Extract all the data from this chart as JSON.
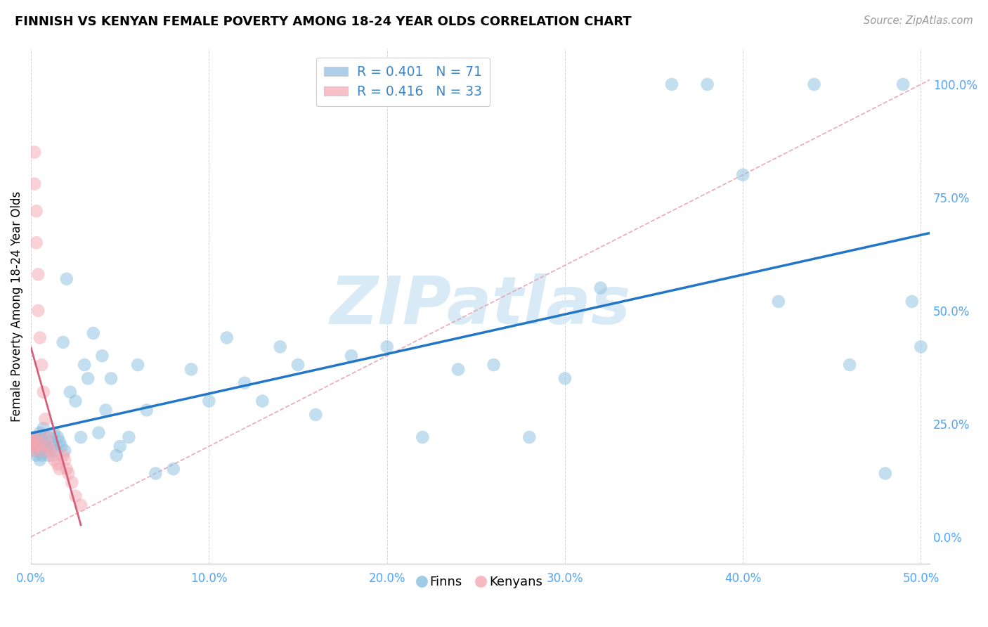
{
  "title": "FINNISH VS KENYAN FEMALE POVERTY AMONG 18-24 YEAR OLDS CORRELATION CHART",
  "source": "Source: ZipAtlas.com",
  "ylabel": "Female Poverty Among 18-24 Year Olds",
  "xlim": [
    0.0,
    0.505
  ],
  "ylim": [
    -0.06,
    1.08
  ],
  "xticks": [
    0.0,
    0.1,
    0.2,
    0.3,
    0.4,
    0.5
  ],
  "yticks_right": [
    0.0,
    0.25,
    0.5,
    0.75,
    1.0
  ],
  "ytick_labels_right": [
    "0.0%",
    "25.0%",
    "50.0%",
    "75.0%",
    "100.0%"
  ],
  "xtick_labels": [
    "0.0%",
    "10.0%",
    "20.0%",
    "30.0%",
    "40.0%",
    "50.0%"
  ],
  "legend_finns_label": "R = 0.401   N = 71",
  "legend_kenyans_label": "R = 0.416   N = 33",
  "legend_finns_color": "#aecde8",
  "legend_kenyans_color": "#f9c0c8",
  "finn_color": "#89bfdf",
  "kenyan_color": "#f4a7b2",
  "finn_line_color": "#2176c7",
  "kenyan_line_color": "#d45f7a",
  "reference_line_color": "#e8a0b0",
  "grid_color": "#d0d0d0",
  "axis_color": "#4da6ff",
  "text_color": "#3a86c8",
  "watermark_color": "#d8eaf5",
  "finns_x": [
    0.001,
    0.002,
    0.002,
    0.003,
    0.003,
    0.004,
    0.004,
    0.005,
    0.005,
    0.005,
    0.006,
    0.006,
    0.007,
    0.007,
    0.008,
    0.009,
    0.01,
    0.01,
    0.011,
    0.012,
    0.013,
    0.014,
    0.015,
    0.016,
    0.017,
    0.018,
    0.019,
    0.02,
    0.022,
    0.025,
    0.028,
    0.03,
    0.032,
    0.035,
    0.038,
    0.04,
    0.042,
    0.045,
    0.048,
    0.05,
    0.055,
    0.06,
    0.065,
    0.07,
    0.08,
    0.09,
    0.1,
    0.11,
    0.12,
    0.13,
    0.14,
    0.15,
    0.16,
    0.18,
    0.2,
    0.22,
    0.24,
    0.26,
    0.28,
    0.3,
    0.32,
    0.36,
    0.38,
    0.4,
    0.42,
    0.44,
    0.46,
    0.48,
    0.49,
    0.495,
    0.5
  ],
  "finns_y": [
    0.2,
    0.22,
    0.19,
    0.22,
    0.18,
    0.21,
    0.2,
    0.23,
    0.19,
    0.17,
    0.22,
    0.18,
    0.21,
    0.24,
    0.2,
    0.19,
    0.22,
    0.18,
    0.21,
    0.2,
    0.23,
    0.19,
    0.22,
    0.21,
    0.2,
    0.43,
    0.19,
    0.57,
    0.32,
    0.3,
    0.22,
    0.38,
    0.35,
    0.45,
    0.23,
    0.4,
    0.28,
    0.35,
    0.18,
    0.2,
    0.22,
    0.38,
    0.28,
    0.14,
    0.15,
    0.37,
    0.3,
    0.44,
    0.34,
    0.3,
    0.42,
    0.38,
    0.27,
    0.4,
    0.42,
    0.22,
    0.37,
    0.38,
    0.22,
    0.35,
    0.55,
    1.0,
    1.0,
    0.8,
    0.52,
    1.0,
    0.38,
    0.14,
    1.0,
    0.52,
    0.42
  ],
  "kenyans_x": [
    0.0,
    0.0,
    0.001,
    0.001,
    0.002,
    0.002,
    0.002,
    0.003,
    0.003,
    0.003,
    0.004,
    0.004,
    0.004,
    0.005,
    0.005,
    0.006,
    0.006,
    0.007,
    0.008,
    0.009,
    0.01,
    0.011,
    0.012,
    0.013,
    0.015,
    0.016,
    0.018,
    0.019,
    0.02,
    0.021,
    0.023,
    0.025,
    0.028
  ],
  "kenyans_y": [
    0.21,
    0.2,
    0.22,
    0.19,
    0.85,
    0.78,
    0.22,
    0.72,
    0.65,
    0.2,
    0.58,
    0.5,
    0.21,
    0.44,
    0.2,
    0.38,
    0.19,
    0.32,
    0.26,
    0.22,
    0.2,
    0.19,
    0.18,
    0.17,
    0.16,
    0.15,
    0.18,
    0.17,
    0.15,
    0.14,
    0.12,
    0.09,
    0.07
  ]
}
